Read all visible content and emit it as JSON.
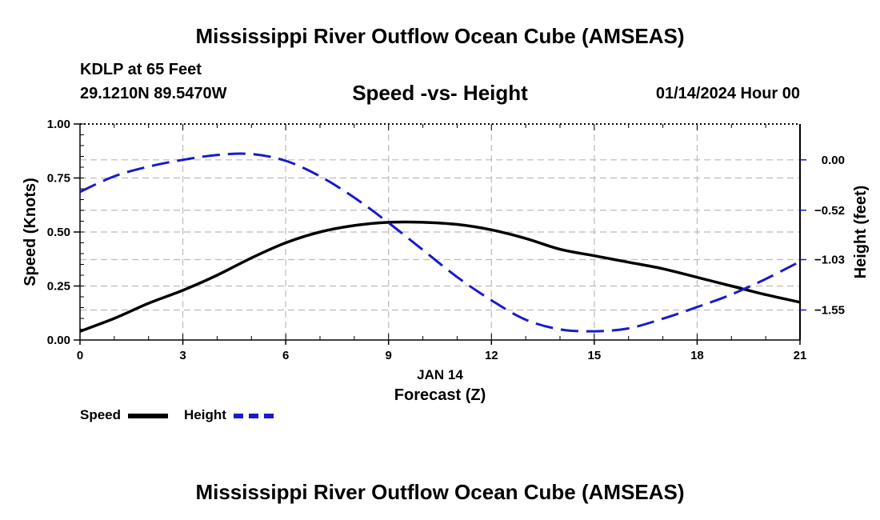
{
  "header": {
    "title": "Mississippi River Outflow Ocean Cube (AMSEAS)",
    "station": "KDLP at 65 Feet",
    "coords": "29.1210N  89.5470W",
    "chart_title": "Speed -vs- Height",
    "datetime": "01/14/2024 Hour 00"
  },
  "footer": {
    "title": "Mississippi River Outflow Ocean Cube (AMSEAS)"
  },
  "legend": {
    "speed_label": "Speed",
    "height_label": "Height"
  },
  "colors": {
    "speed": "#000000",
    "height": "#1a1acc",
    "grid": "#bbbbbb"
  },
  "chart_data": {
    "type": "line",
    "title": "Speed -vs- Height",
    "xlabel": "Forecast (Z)",
    "xlabel_date": "JAN 14",
    "ylabel": "Speed (Knots)",
    "y2label": "Height (feet)",
    "xlim": [
      0,
      21
    ],
    "ylim": [
      0,
      1
    ],
    "y2lim": [
      -1.86,
      0.37
    ],
    "x_ticks": [
      0,
      3,
      6,
      9,
      12,
      15,
      18,
      21
    ],
    "x_tick_labels": [
      "0",
      "3",
      "6",
      "9",
      "12",
      "15",
      "18",
      "21"
    ],
    "y_ticks": [
      0,
      0.25,
      0.5,
      0.75,
      1.0
    ],
    "y_tick_labels": [
      "0.00",
      "0.25",
      "0.50",
      "0.75",
      "1.00"
    ],
    "y2_ticks": [
      0.0,
      -0.52,
      -1.03,
      -1.55
    ],
    "y2_tick_labels": [
      "0.00",
      "−0.52",
      "−1.03",
      "−1.55"
    ],
    "grid": true,
    "series": [
      {
        "name": "Speed",
        "axis": "left",
        "style": "solid",
        "x": [
          0,
          1,
          2,
          3,
          4,
          5,
          6,
          7,
          8,
          9,
          10,
          11,
          12,
          13,
          14,
          15,
          16,
          17,
          18,
          19,
          20,
          21
        ],
        "values": [
          0.04,
          0.1,
          0.17,
          0.23,
          0.3,
          0.38,
          0.45,
          0.5,
          0.53,
          0.545,
          0.545,
          0.535,
          0.51,
          0.47,
          0.42,
          0.39,
          0.36,
          0.33,
          0.29,
          0.25,
          0.21,
          0.175
        ]
      },
      {
        "name": "Height",
        "axis": "right",
        "style": "dashed",
        "x": [
          0,
          1,
          2,
          3,
          4,
          5,
          6,
          7,
          8,
          9,
          10,
          11,
          12,
          13,
          14,
          15,
          16,
          17,
          18,
          19,
          20,
          21
        ],
        "values": [
          -0.33,
          -0.17,
          -0.07,
          0.0,
          0.05,
          0.06,
          -0.01,
          -0.17,
          -0.39,
          -0.65,
          -0.93,
          -1.21,
          -1.45,
          -1.65,
          -1.75,
          -1.77,
          -1.74,
          -1.64,
          -1.52,
          -1.39,
          -1.23,
          -1.05
        ]
      }
    ]
  }
}
